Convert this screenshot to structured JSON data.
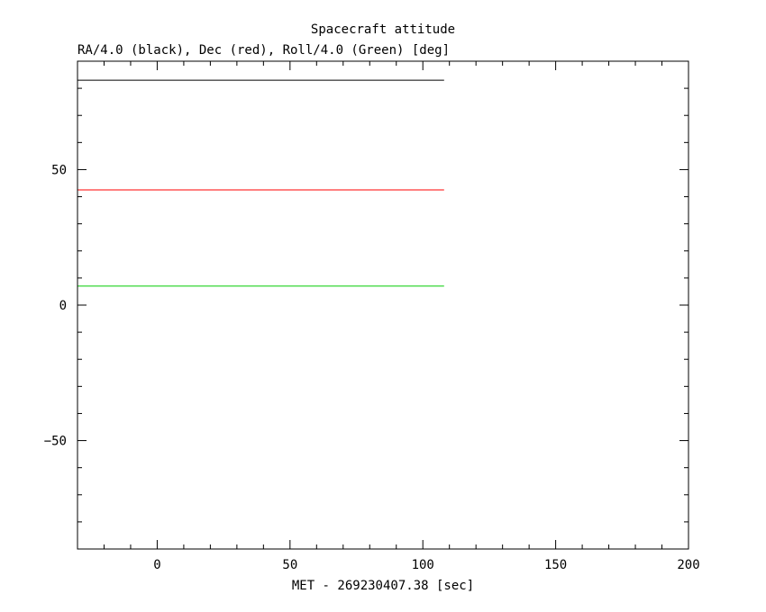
{
  "chart_data": {
    "type": "line",
    "title": "Spacecraft attitude",
    "subtitle": "RA/4.0 (black), Dec (red), Roll/4.0 (Green) [deg]",
    "xlabel": "MET - 269230407.38 [sec]",
    "ylabel": "",
    "xlim": [
      -30,
      200
    ],
    "ylim": [
      -90,
      90
    ],
    "x_ticks": [
      0,
      50,
      100,
      150,
      200
    ],
    "x_tick_labels": [
      "0",
      "50",
      "100",
      "150",
      "200"
    ],
    "y_ticks": [
      -50,
      0,
      50
    ],
    "y_tick_labels": [
      "−50",
      "0",
      "50"
    ],
    "grid": false,
    "legend": "none",
    "series": [
      {
        "color": "#000000",
        "x": [
          -30,
          108
        ],
        "y": [
          83,
          83
        ]
      },
      {
        "color": "#ff0000",
        "x": [
          -30,
          108
        ],
        "y": [
          42.5,
          42.5
        ]
      },
      {
        "color": "#00cc00",
        "x": [
          -30,
          108
        ],
        "y": [
          7,
          7
        ]
      }
    ]
  }
}
